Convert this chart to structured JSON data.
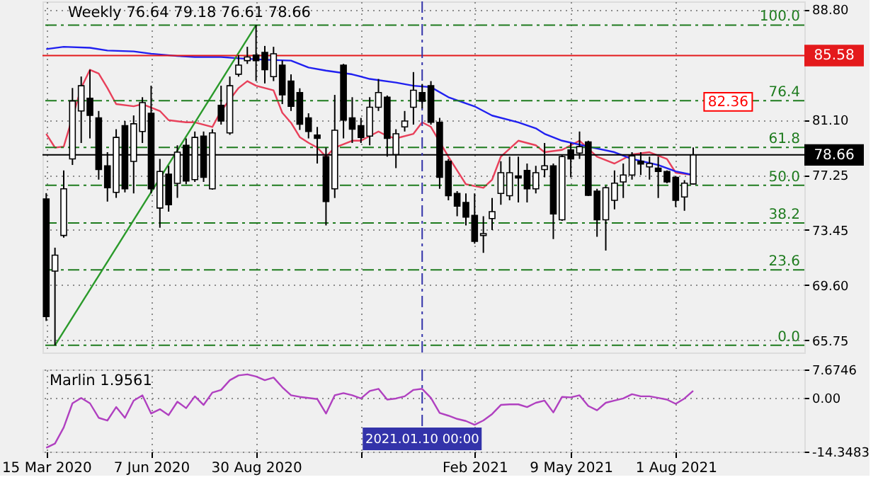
{
  "chart_data": [
    {
      "type": "candlestick",
      "title": "Weekly 76.64 79.18 76.61 78.66",
      "x": [
        "2020-03-15",
        "2020-03-22",
        "2020-03-29",
        "2020-04-05",
        "2020-04-12",
        "2020-04-19",
        "2020-04-26",
        "2020-05-03",
        "2020-05-10",
        "2020-05-17",
        "2020-05-24",
        "2020-05-31",
        "2020-06-07",
        "2020-06-14",
        "2020-06-21",
        "2020-06-28",
        "2020-07-05",
        "2020-07-12",
        "2020-07-19",
        "2020-07-26",
        "2020-08-02",
        "2020-08-09",
        "2020-08-16",
        "2020-08-23",
        "2020-08-30",
        "2020-09-06",
        "2020-09-13",
        "2020-09-20",
        "2020-09-27",
        "2020-10-04",
        "2020-10-11",
        "2020-10-18",
        "2020-10-25",
        "2020-11-01",
        "2020-11-08",
        "2020-11-15",
        "2020-11-22",
        "2020-11-29",
        "2020-12-06",
        "2020-12-13",
        "2020-12-20",
        "2020-12-27",
        "2021-01-03",
        "2021-01-10",
        "2021-01-17",
        "2021-01-24",
        "2021-01-31",
        "2021-02-07",
        "2021-02-14",
        "2021-02-21",
        "2021-02-28",
        "2021-03-07",
        "2021-03-14",
        "2021-03-21",
        "2021-03-28",
        "2021-04-04",
        "2021-04-11",
        "2021-04-18",
        "2021-04-25",
        "2021-05-02",
        "2021-05-09",
        "2021-05-16",
        "2021-05-23",
        "2021-05-30",
        "2021-06-06",
        "2021-06-13",
        "2021-06-20",
        "2021-06-27",
        "2021-07-04",
        "2021-07-11",
        "2021-07-18",
        "2021-07-25",
        "2021-08-01",
        "2021-08-08",
        "2021-08-15"
      ],
      "ohlc": [
        [
          75.6,
          76.0,
          67.1,
          67.4
        ],
        [
          70.57,
          72.2,
          65.4,
          71.68
        ],
        [
          73.05,
          77.58,
          72.9,
          76.3
        ],
        [
          78.38,
          83.32,
          77.96,
          82.42
        ],
        [
          81.72,
          84.12,
          79.49,
          83.48
        ],
        [
          82.61,
          84.59,
          79.81,
          81.41
        ],
        [
          81.24,
          81.72,
          76.94,
          77.64
        ],
        [
          77.9,
          78.85,
          75.41,
          76.37
        ],
        [
          76.05,
          80.45,
          75.67,
          79.88
        ],
        [
          80.7,
          81.02,
          76.05,
          76.3
        ],
        [
          78.21,
          81.41,
          75.98,
          80.83
        ],
        [
          80.29,
          82.68,
          79.49,
          82.3
        ],
        [
          81.56,
          83.48,
          75.98,
          76.3
        ],
        [
          74.96,
          78.38,
          73.59,
          77.51
        ],
        [
          77.32,
          77.9,
          74.71,
          75.19
        ],
        [
          76.68,
          79.33,
          75.67,
          78.85
        ],
        [
          79.33,
          79.81,
          76.62,
          76.85
        ],
        [
          76.94,
          80.29,
          76.78,
          79.88
        ],
        [
          79.97,
          80.29,
          76.78,
          77.1
        ],
        [
          76.3,
          80.45,
          76.24,
          80.19
        ],
        [
          82.11,
          83.48,
          80.77,
          81.02
        ],
        [
          80.19,
          84.12,
          80.06,
          83.48
        ],
        [
          84.28,
          85.61,
          84.11,
          84.91
        ],
        [
          85.23,
          86.19,
          85.0,
          85.48
        ],
        [
          85.61,
          87.7,
          83.8,
          85.23
        ],
        [
          85.8,
          86.25,
          83.64,
          84.59
        ],
        [
          84.11,
          86.19,
          83.8,
          85.7
        ],
        [
          84.91,
          85.23,
          82.2,
          82.84
        ],
        [
          83.8,
          84.27,
          81.72,
          82.04
        ],
        [
          83.0,
          83.3,
          80.4,
          80.8
        ],
        [
          81.24,
          81.56,
          79.81,
          80.29
        ],
        [
          80.04,
          80.61,
          78.06,
          79.81
        ],
        [
          78.54,
          79.17,
          73.75,
          75.41
        ],
        [
          76.3,
          82.84,
          75.66,
          80.38
        ],
        [
          84.91,
          85.0,
          79.81,
          81.08
        ],
        [
          81.24,
          82.68,
          79.49,
          80.45
        ],
        [
          80.7,
          81.24,
          79.49,
          79.87
        ],
        [
          79.97,
          82.68,
          79.33,
          81.98
        ],
        [
          81.98,
          83.95,
          81.72,
          83.0
        ],
        [
          82.68,
          82.8,
          78.54,
          79.81
        ],
        [
          78.69,
          80.45,
          77.74,
          80.13
        ],
        [
          80.61,
          81.72,
          80.29,
          81.02
        ],
        [
          81.98,
          84.43,
          80.77,
          83.16
        ],
        [
          83.0,
          83.6,
          81.9,
          82.4
        ],
        [
          83.48,
          83.8,
          80.77,
          80.93
        ],
        [
          80.93,
          81.24,
          76.3,
          77.1
        ],
        [
          78.22,
          78.38,
          75.5,
          75.82
        ],
        [
          75.98,
          76.14,
          74.39,
          75.09
        ],
        [
          75.35,
          75.98,
          73.75,
          74.33
        ],
        [
          74.45,
          75.98,
          72.48,
          72.64
        ],
        [
          73.05,
          74.39,
          71.84,
          73.18
        ],
        [
          74.23,
          75.66,
          73.43,
          74.71
        ],
        [
          75.98,
          78.22,
          75.19,
          77.42
        ],
        [
          75.82,
          78.54,
          75.5,
          77.42
        ],
        [
          77.2,
          78.54,
          75.35,
          77.05
        ],
        [
          77.58,
          78.06,
          75.35,
          76.3
        ],
        [
          76.3,
          77.9,
          75.98,
          77.42
        ],
        [
          77.64,
          79.49,
          77.1,
          77.9
        ],
        [
          77.9,
          78.06,
          72.8,
          74.55
        ],
        [
          74.14,
          78.7,
          74.07,
          78.54
        ],
        [
          79.01,
          79.49,
          77.1,
          78.38
        ],
        [
          78.79,
          80.29,
          78.38,
          79.24
        ],
        [
          79.56,
          79.65,
          75.8,
          75.85
        ],
        [
          76.14,
          76.3,
          72.96,
          74.14
        ],
        [
          74.14,
          76.5,
          72.0,
          76.37
        ],
        [
          75.5,
          77.58,
          74.87,
          76.69
        ],
        [
          76.78,
          78.06,
          75.66,
          77.26
        ],
        [
          77.26,
          78.85,
          76.94,
          78.6
        ],
        [
          78.22,
          78.85,
          77.26,
          78.03
        ],
        [
          77.83,
          78.54,
          76.94,
          78.06
        ],
        [
          77.74,
          78.54,
          75.66,
          77.51
        ],
        [
          77.51,
          77.58,
          76.69,
          76.78
        ],
        [
          77.1,
          77.2,
          75.03,
          75.5
        ],
        [
          75.73,
          76.9,
          74.77,
          76.69
        ],
        [
          76.64,
          79.18,
          76.61,
          78.66
        ]
      ],
      "series": [
        {
          "type": "line",
          "color": "#e8405a",
          "x": [
            "2020-03-15",
            "2020-03-22",
            "2020-03-29",
            "2020-04-12",
            "2020-04-19",
            "2020-04-26",
            "2020-05-03",
            "2020-05-10",
            "2020-05-24",
            "2020-05-31",
            "2020-06-14",
            "2020-06-21",
            "2020-07-05",
            "2020-07-12",
            "2020-07-26",
            "2020-08-02",
            "2020-08-16",
            "2020-08-23",
            "2020-08-30",
            "2020-09-13",
            "2020-09-20",
            "2020-09-27",
            "2020-10-04",
            "2020-10-11",
            "2020-10-18",
            "2020-10-25",
            "2020-11-01",
            "2020-11-15",
            "2020-11-22",
            "2020-12-06",
            "2020-12-13",
            "2020-12-20",
            "2021-01-03",
            "2021-01-10",
            "2021-01-17",
            "2021-01-31",
            "2021-02-14",
            "2021-02-28",
            "2021-03-07",
            "2021-03-14",
            "2021-03-28",
            "2021-04-11",
            "2021-04-18",
            "2021-05-02",
            "2021-05-16",
            "2021-05-30",
            "2021-06-13",
            "2021-06-27",
            "2021-07-11",
            "2021-07-25",
            "2021-08-01",
            "2021-08-15"
          ],
          "values": [
            80.13,
            79.17,
            79.24,
            83.32,
            84.59,
            84.33,
            83.32,
            82.2,
            82.05,
            82.2,
            81.72,
            81.08,
            80.93,
            80.93,
            80.61,
            81.72,
            83.32,
            83.8,
            83.48,
            83.16,
            81.6,
            80.9,
            79.9,
            79.5,
            79.17,
            78.54,
            79.17,
            79.65,
            79.65,
            80.29,
            79.97,
            79.81,
            80.13,
            80.93,
            80.61,
            78.54,
            76.62,
            76.37,
            76.94,
            78.54,
            79.65,
            79.33,
            78.85,
            79.01,
            79.65,
            78.54,
            78.06,
            78.69,
            78.85,
            78.38,
            77.42,
            77.26
          ]
        },
        {
          "type": "line",
          "color": "#2020f0",
          "x": [
            "2020-03-15",
            "2020-03-29",
            "2020-04-19",
            "2020-05-03",
            "2020-05-24",
            "2020-06-07",
            "2020-06-28",
            "2020-07-12",
            "2020-08-02",
            "2020-08-16",
            "2020-09-06",
            "2020-09-27",
            "2020-10-11",
            "2020-10-25",
            "2020-11-15",
            "2020-11-29",
            "2020-12-20",
            "2021-01-03",
            "2021-01-17",
            "2021-01-31",
            "2021-02-21",
            "2021-03-07",
            "2021-03-28",
            "2021-04-11",
            "2021-04-18",
            "2021-05-02",
            "2021-05-23",
            "2021-06-13",
            "2021-06-27",
            "2021-07-18",
            "2021-08-01",
            "2021-08-15"
          ],
          "values": [
            86.03,
            86.19,
            86.12,
            85.93,
            85.87,
            85.71,
            85.55,
            85.48,
            85.48,
            85.39,
            85.29,
            85.23,
            84.75,
            84.53,
            84.27,
            83.95,
            83.7,
            83.48,
            83.38,
            82.68,
            82.04,
            81.4,
            80.93,
            80.51,
            80.13,
            79.65,
            79.24,
            78.85,
            78.38,
            77.96,
            77.51,
            77.26
          ]
        },
        {
          "type": "line",
          "color": "#2a9a2a",
          "x": [
            "2020-03-22",
            "2020-08-30"
          ],
          "values": [
            65.4,
            87.7
          ]
        }
      ],
      "xlim": [
        "2020-03-12",
        "2021-11-12"
      ],
      "ylim": [
        64.9,
        89.35
      ],
      "xticks": [
        {
          "value": "2020-03-15",
          "label": null
        },
        {
          "value": "2020-06-07",
          "label": null
        },
        {
          "value": "2020-08-30",
          "label": null
        },
        {
          "value": "2020-11-22",
          "label": null
        },
        {
          "value": "2021-02-21",
          "label": null
        },
        {
          "value": "2021-05-09",
          "label": null
        },
        {
          "value": "2021-08-01",
          "label": null
        }
      ],
      "yticks": [
        {
          "value": 88.8,
          "label": "88.80"
        },
        {
          "value": 81.1,
          "label": "81.10"
        },
        77.25,
        73.45,
        {
          "value": 69.6,
          "label": "69.60"
        },
        65.75
      ],
      "tick_labels": "y",
      "grid": true,
      "ref_lines": [
        {
          "axis": "y",
          "value": 87.7,
          "color": "#1e7b1e",
          "line_style": "dashed"
        },
        {
          "axis": "y",
          "value": 82.44,
          "color": "#1e7b1e",
          "line_style": "dashed"
        },
        {
          "axis": "y",
          "value": 79.18,
          "color": "#1e7b1e",
          "line_style": "dashed"
        },
        {
          "axis": "y",
          "value": 76.55,
          "color": "#1e7b1e",
          "line_style": "dashed"
        },
        {
          "axis": "y",
          "value": 73.92,
          "color": "#1e7b1e",
          "line_style": "dashed"
        },
        {
          "axis": "y",
          "value": 70.66,
          "color": "#1e7b1e",
          "line_style": "dashed"
        },
        {
          "axis": "y",
          "value": 65.4,
          "color": "#1e7b1e",
          "line_style": "dashed"
        },
        {
          "axis": "y",
          "value": 85.58,
          "label": "85.58",
          "color": "#e41a1c",
          "line_style": "solid"
        },
        {
          "axis": "y",
          "value": 78.66,
          "label": "78.66",
          "color": "#000000",
          "line_style": "solid"
        },
        {
          "axis": "x",
          "value": "2021-01-10",
          "color": "#3333aa",
          "line_style": "dashed"
        }
      ],
      "annotations": [
        {
          "text": "100.0",
          "x": "2021-11-12",
          "y": 87.7
        },
        {
          "text": "76.4",
          "x": "2021-11-12",
          "y": 82.44
        },
        {
          "text": "61.8",
          "x": "2021-11-12",
          "y": 79.18
        },
        {
          "text": "50.0",
          "x": "2021-11-12",
          "y": 76.55
        },
        {
          "text": "38.2",
          "x": "2021-11-12",
          "y": 73.92
        },
        {
          "text": "23.6",
          "x": "2021-11-12",
          "y": 70.66
        },
        {
          "text": "0.0",
          "x": "2021-11-12",
          "y": 65.4
        },
        {
          "text": "82.36",
          "x": "2021-09-12",
          "y": 82.36
        }
      ]
    },
    {
      "type": "line",
      "title": "Marlin 1.9561",
      "x": [
        "2020-03-15",
        "2020-03-22",
        "2020-03-29",
        "2020-04-05",
        "2020-04-12",
        "2020-04-19",
        "2020-04-26",
        "2020-05-03",
        "2020-05-10",
        "2020-05-17",
        "2020-05-24",
        "2020-05-31",
        "2020-06-07",
        "2020-06-14",
        "2020-06-21",
        "2020-06-28",
        "2020-07-05",
        "2020-07-12",
        "2020-07-19",
        "2020-07-26",
        "2020-08-02",
        "2020-08-09",
        "2020-08-16",
        "2020-08-23",
        "2020-08-30",
        "2020-09-06",
        "2020-09-13",
        "2020-09-20",
        "2020-09-27",
        "2020-10-04",
        "2020-10-18",
        "2020-10-25",
        "2020-11-01",
        "2020-11-08",
        "2020-11-15",
        "2020-11-22",
        "2020-11-29",
        "2020-12-06",
        "2020-12-13",
        "2020-12-20",
        "2020-12-27",
        "2021-01-03",
        "2021-01-10",
        "2021-01-17",
        "2021-01-24",
        "2021-01-31",
        "2021-02-07",
        "2021-02-14",
        "2021-02-21",
        "2021-02-28",
        "2021-03-07",
        "2021-03-14",
        "2021-03-21",
        "2021-03-28",
        "2021-04-04",
        "2021-04-11",
        "2021-04-18",
        "2021-04-25",
        "2021-05-02",
        "2021-05-09",
        "2021-05-16",
        "2021-05-23",
        "2021-05-30",
        "2021-06-06",
        "2021-06-13",
        "2021-06-20",
        "2021-06-27",
        "2021-07-04",
        "2021-07-11",
        "2021-07-18",
        "2021-07-25",
        "2021-08-01",
        "2021-08-08",
        "2021-08-15"
      ],
      "series": [
        {
          "color": "#b040c0",
          "values": [
            -13.34,
            -12.19,
            -7.87,
            -1.39,
            0.05,
            -1.39,
            -5.28,
            -6.0,
            -2.4,
            -5.28,
            -0.67,
            0.76,
            -4.13,
            -2.98,
            -4.56,
            -0.96,
            -2.69,
            0.48,
            -1.83,
            1.48,
            2.2,
            4.8,
            6.09,
            6.38,
            5.8,
            4.8,
            5.52,
            2.92,
            0.76,
            0.33,
            -0.24,
            -4.13,
            0.76,
            1.34,
            0.76,
            -0.1,
            1.92,
            2.49,
            -0.39,
            -0.1,
            0.48,
            2.2,
            2.49,
            0.05,
            -3.99,
            -4.71,
            -5.57,
            -6.14,
            -7.15,
            -6.0,
            -4.27,
            -1.83,
            -1.68,
            -1.68,
            -2.4,
            -1.25,
            -0.67,
            -3.84,
            0.33,
            0.19,
            0.76,
            -2.11,
            -3.27,
            -1.25,
            -0.67,
            -0.1,
            1.05,
            0.48,
            0.48,
            0.05,
            -0.39,
            -1.54,
            -0.1,
            1.9561
          ]
        }
      ],
      "xlim": [
        "2020-03-12",
        "2021-11-12"
      ],
      "ylim": [
        -14.3483,
        7.6746
      ],
      "xticks": [
        {
          "value": "2020-03-15",
          "label": "15 Mar 2020"
        },
        {
          "value": "2020-06-07",
          "label": "7 Jun 2020"
        },
        {
          "value": "2020-08-30",
          "label": "30 Aug 2020"
        },
        {
          "value": "2020-11-22",
          "label": null
        },
        {
          "value": "2021-02-21",
          "label": "Feb 2021"
        },
        {
          "value": "2021-05-09",
          "label": "9 May 2021"
        },
        {
          "value": "2021-08-01",
          "label": "1 Aug 2021"
        }
      ],
      "yticks": [
        7.6746,
        {
          "value": 0,
          "label": "0.00"
        },
        -14.3483
      ],
      "grid": true,
      "ref_lines": [
        {
          "axis": "x",
          "value": "2021-01-10",
          "label": "2021.01.10 00:00",
          "color": "#3333aa",
          "line_style": "dashed"
        }
      ]
    }
  ]
}
